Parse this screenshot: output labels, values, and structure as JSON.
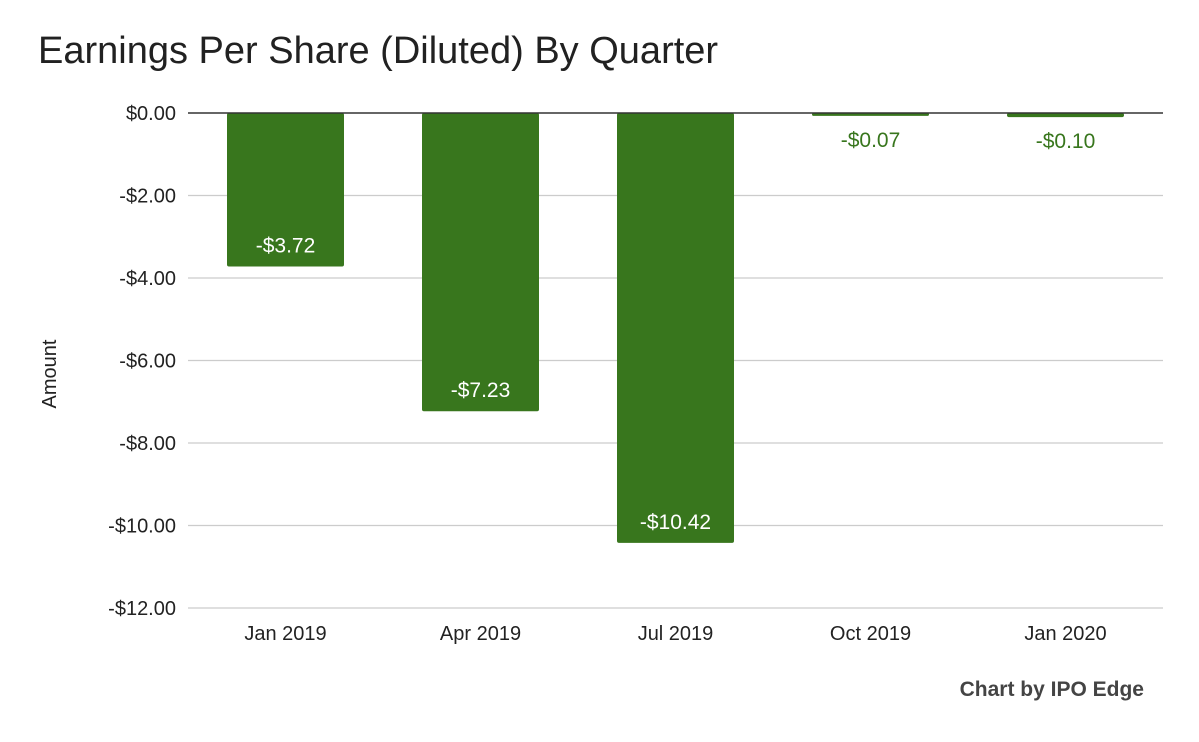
{
  "title": "Earnings Per Share (Diluted) By Quarter",
  "credit": "Chart by IPO Edge",
  "colors": {
    "bar": "#38761d",
    "grid": "#cccccc",
    "zero_line": "#333333",
    "label_outside": "#38761d",
    "label_inside": "#ffffff"
  },
  "chart_data": {
    "type": "bar",
    "title": "Earnings Per Share (Diluted) By Quarter",
    "xlabel": "",
    "ylabel": "Amount",
    "categories": [
      "Jan 2019",
      "Apr 2019",
      "Jul 2019",
      "Oct 2019",
      "Jan 2020"
    ],
    "values": [
      -3.72,
      -7.23,
      -10.42,
      -0.07,
      -0.1
    ],
    "data_labels": [
      "-$3.72",
      "-$7.23",
      "-$10.42",
      "-$0.07",
      "-$0.10"
    ],
    "ylim": [
      -12,
      0
    ],
    "yticks": [
      0,
      -2,
      -4,
      -6,
      -8,
      -10,
      -12
    ],
    "ytick_labels": [
      "$0.00",
      "-$2.00",
      "-$4.00",
      "-$6.00",
      "-$8.00",
      "-$10.00",
      "-$12.00"
    ],
    "grid": true,
    "legend": "none"
  }
}
